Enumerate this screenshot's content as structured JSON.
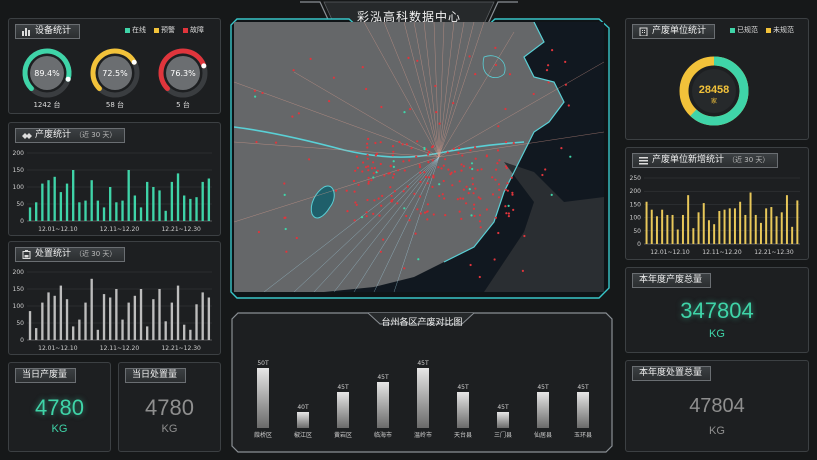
{
  "header": {
    "title": "彩泓高科数据中心"
  },
  "device": {
    "title": "设备统计",
    "legend": [
      {
        "label": "在线",
        "color": "#3fd4a8"
      },
      {
        "label": "预警",
        "color": "#f2c23a"
      },
      {
        "label": "故障",
        "color": "#e0353c"
      }
    ],
    "gauges": [
      {
        "pct_label": "89.4%",
        "value": 0.894,
        "count": "1242 台",
        "color": "#3fd4a8"
      },
      {
        "pct_label": "72.5%",
        "value": 0.725,
        "count": "58 台",
        "color": "#f2c23a"
      },
      {
        "pct_label": "76.3%",
        "value": 0.763,
        "count": "5 台",
        "color": "#e0353c"
      }
    ]
  },
  "production": {
    "title": "产废统计",
    "subtitle": "（近 30 天）",
    "color": "#3fd4a8",
    "yticks": [
      "200",
      "150",
      "100",
      "50",
      "0"
    ],
    "ymax": 200,
    "xlabels": [
      "12.01~12.10",
      "12.11~12.20",
      "12.21~12.30"
    ],
    "values": [
      40,
      55,
      110,
      120,
      130,
      85,
      110,
      150,
      55,
      60,
      120,
      60,
      40,
      100,
      55,
      60,
      150,
      75,
      40,
      115,
      100,
      90,
      30,
      115,
      140,
      75,
      65,
      70,
      115,
      125
    ]
  },
  "disposal": {
    "title": "处置统计",
    "subtitle": "（近 30 天）",
    "color": "#bdbdbd",
    "yticks": [
      "200",
      "150",
      "100",
      "50",
      "0"
    ],
    "ymax": 200,
    "xlabels": [
      "12.01~12.10",
      "12.11~12.20",
      "12.21~12.30"
    ],
    "values": [
      85,
      35,
      110,
      140,
      130,
      160,
      120,
      40,
      60,
      110,
      180,
      30,
      135,
      125,
      150,
      60,
      110,
      130,
      150,
      40,
      120,
      150,
      55,
      110,
      160,
      45,
      30,
      105,
      140,
      125
    ]
  },
  "daily_prod": {
    "title": "当日产废量",
    "value": "4780",
    "unit": "KG",
    "color": "#3fd4a8"
  },
  "daily_disp": {
    "title": "当日处置量",
    "value": "4780",
    "unit": "KG",
    "color": "#9a9a9a"
  },
  "units": {
    "title": "产废单位统计",
    "legend": [
      {
        "label": "已规范",
        "color": "#3fd4a8"
      },
      {
        "label": "未规范",
        "color": "#f2c23a"
      }
    ],
    "total": "28458",
    "unit": "家",
    "normalized_fraction": 0.62
  },
  "new_units": {
    "title": "产废单位新增统计",
    "subtitle": "（近 30 天）",
    "color": "#e8c85a",
    "yticks": [
      "250",
      "200",
      "150",
      "100",
      "50",
      "0"
    ],
    "ymax": 250,
    "xlabels": [
      "12.01~12.10",
      "12.11~12.20",
      "12.21~12.30"
    ],
    "values": [
      160,
      130,
      105,
      130,
      110,
      110,
      55,
      110,
      185,
      60,
      120,
      155,
      90,
      75,
      125,
      130,
      135,
      135,
      160,
      110,
      195,
      110,
      80,
      135,
      140,
      105,
      120,
      185,
      65,
      165
    ]
  },
  "annual_prod": {
    "title": "本年度产废总量",
    "value": "347804",
    "unit": "KG",
    "color": "#3fd4a8"
  },
  "annual_disp": {
    "title": "本年度处置总量",
    "value": "47804",
    "unit": "KG",
    "color": "#9a9a9a"
  },
  "district": {
    "title": "台州各区产废对比图",
    "unit": "T",
    "items": [
      {
        "name": "葭桥区",
        "label": "50T",
        "value": 50
      },
      {
        "name": "椒江区",
        "label": "40T",
        "value": 40
      },
      {
        "name": "黄岩区",
        "label": "45T",
        "value": 45
      },
      {
        "name": "临海市",
        "label": "45T",
        "value": 45
      },
      {
        "name": "温岭市",
        "label": "45T",
        "value": 45
      },
      {
        "name": "天台县",
        "label": "45T",
        "value": 45
      },
      {
        "name": "三门县",
        "label": "45T",
        "value": 45
      },
      {
        "name": "仙居县",
        "label": "45T",
        "value": 45
      },
      {
        "name": "玉环县",
        "label": "45T",
        "value": 45
      }
    ],
    "visual_heights": [
      60,
      16,
      36,
      46,
      60,
      36,
      16,
      36,
      36
    ]
  }
}
